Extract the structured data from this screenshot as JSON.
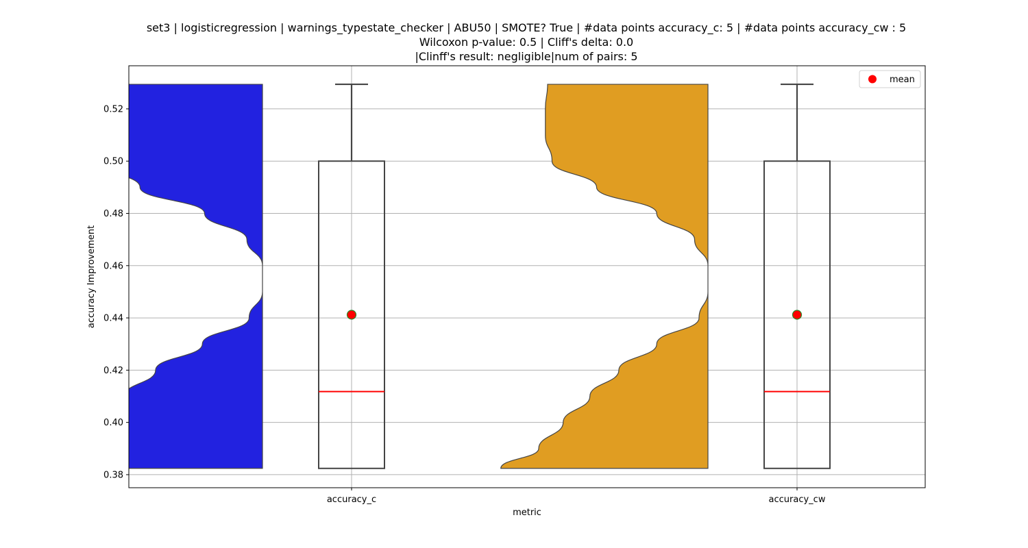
{
  "chart_data": {
    "type": "violin+box",
    "title": [
      "set3 | logisticregression | warnings_typestate_checker | ABU50 | SMOTE? True | #data points accuracy_c: 5 | #data points accuracy_cw : 5",
      "Wilcoxon p-value: 0.5 | Cliff's delta: 0.0",
      "|Clinff's result: negligible|num of pairs: 5"
    ],
    "xlabel": "metric",
    "ylabel": "accuracy Improvement",
    "ylim": [
      0.375,
      0.5365
    ],
    "yticks": [
      "0.38",
      "0.40",
      "0.42",
      "0.44",
      "0.46",
      "0.48",
      "0.50",
      "0.52"
    ],
    "categories": [
      "accuracy_c",
      "accuracy_cw"
    ],
    "grid": true,
    "legend": {
      "placement": "top-right",
      "entries": [
        {
          "label": "mean",
          "color": "#ff0000"
        }
      ]
    },
    "series": [
      {
        "category": "accuracy_c",
        "violin_color": "#2222e0",
        "box": {
          "min": 0.3824,
          "q1": 0.3824,
          "median": 0.4118,
          "q3": 0.5,
          "max": 0.5294,
          "mean": 0.4412
        },
        "density_profile": [
          [
            0.3824,
            0.95
          ],
          [
            0.39,
            0.85
          ],
          [
            0.4,
            0.74
          ],
          [
            0.41,
            0.62
          ],
          [
            0.42,
            0.48
          ],
          [
            0.43,
            0.27
          ],
          [
            0.44,
            0.06
          ],
          [
            0.45,
            0.0
          ],
          [
            0.46,
            0.0
          ],
          [
            0.47,
            0.07
          ],
          [
            0.48,
            0.26
          ],
          [
            0.49,
            0.55
          ],
          [
            0.5,
            0.75
          ],
          [
            0.51,
            0.79
          ],
          [
            0.52,
            0.79
          ],
          [
            0.5294,
            0.78
          ]
        ]
      },
      {
        "category": "accuracy_cw",
        "violin_color": "#e09d22",
        "box": {
          "min": 0.3824,
          "q1": 0.3824,
          "median": 0.4118,
          "q3": 0.5,
          "max": 0.5294,
          "mean": 0.4412
        },
        "density_profile": [
          [
            0.3824,
            0.93
          ],
          [
            0.39,
            0.76
          ],
          [
            0.4,
            0.65
          ],
          [
            0.41,
            0.53
          ],
          [
            0.42,
            0.4
          ],
          [
            0.43,
            0.23
          ],
          [
            0.44,
            0.04
          ],
          [
            0.45,
            0.0
          ],
          [
            0.46,
            0.0
          ],
          [
            0.47,
            0.06
          ],
          [
            0.48,
            0.23
          ],
          [
            0.49,
            0.5
          ],
          [
            0.5,
            0.7
          ],
          [
            0.51,
            0.73
          ],
          [
            0.52,
            0.73
          ],
          [
            0.5294,
            0.72
          ]
        ]
      }
    ]
  }
}
